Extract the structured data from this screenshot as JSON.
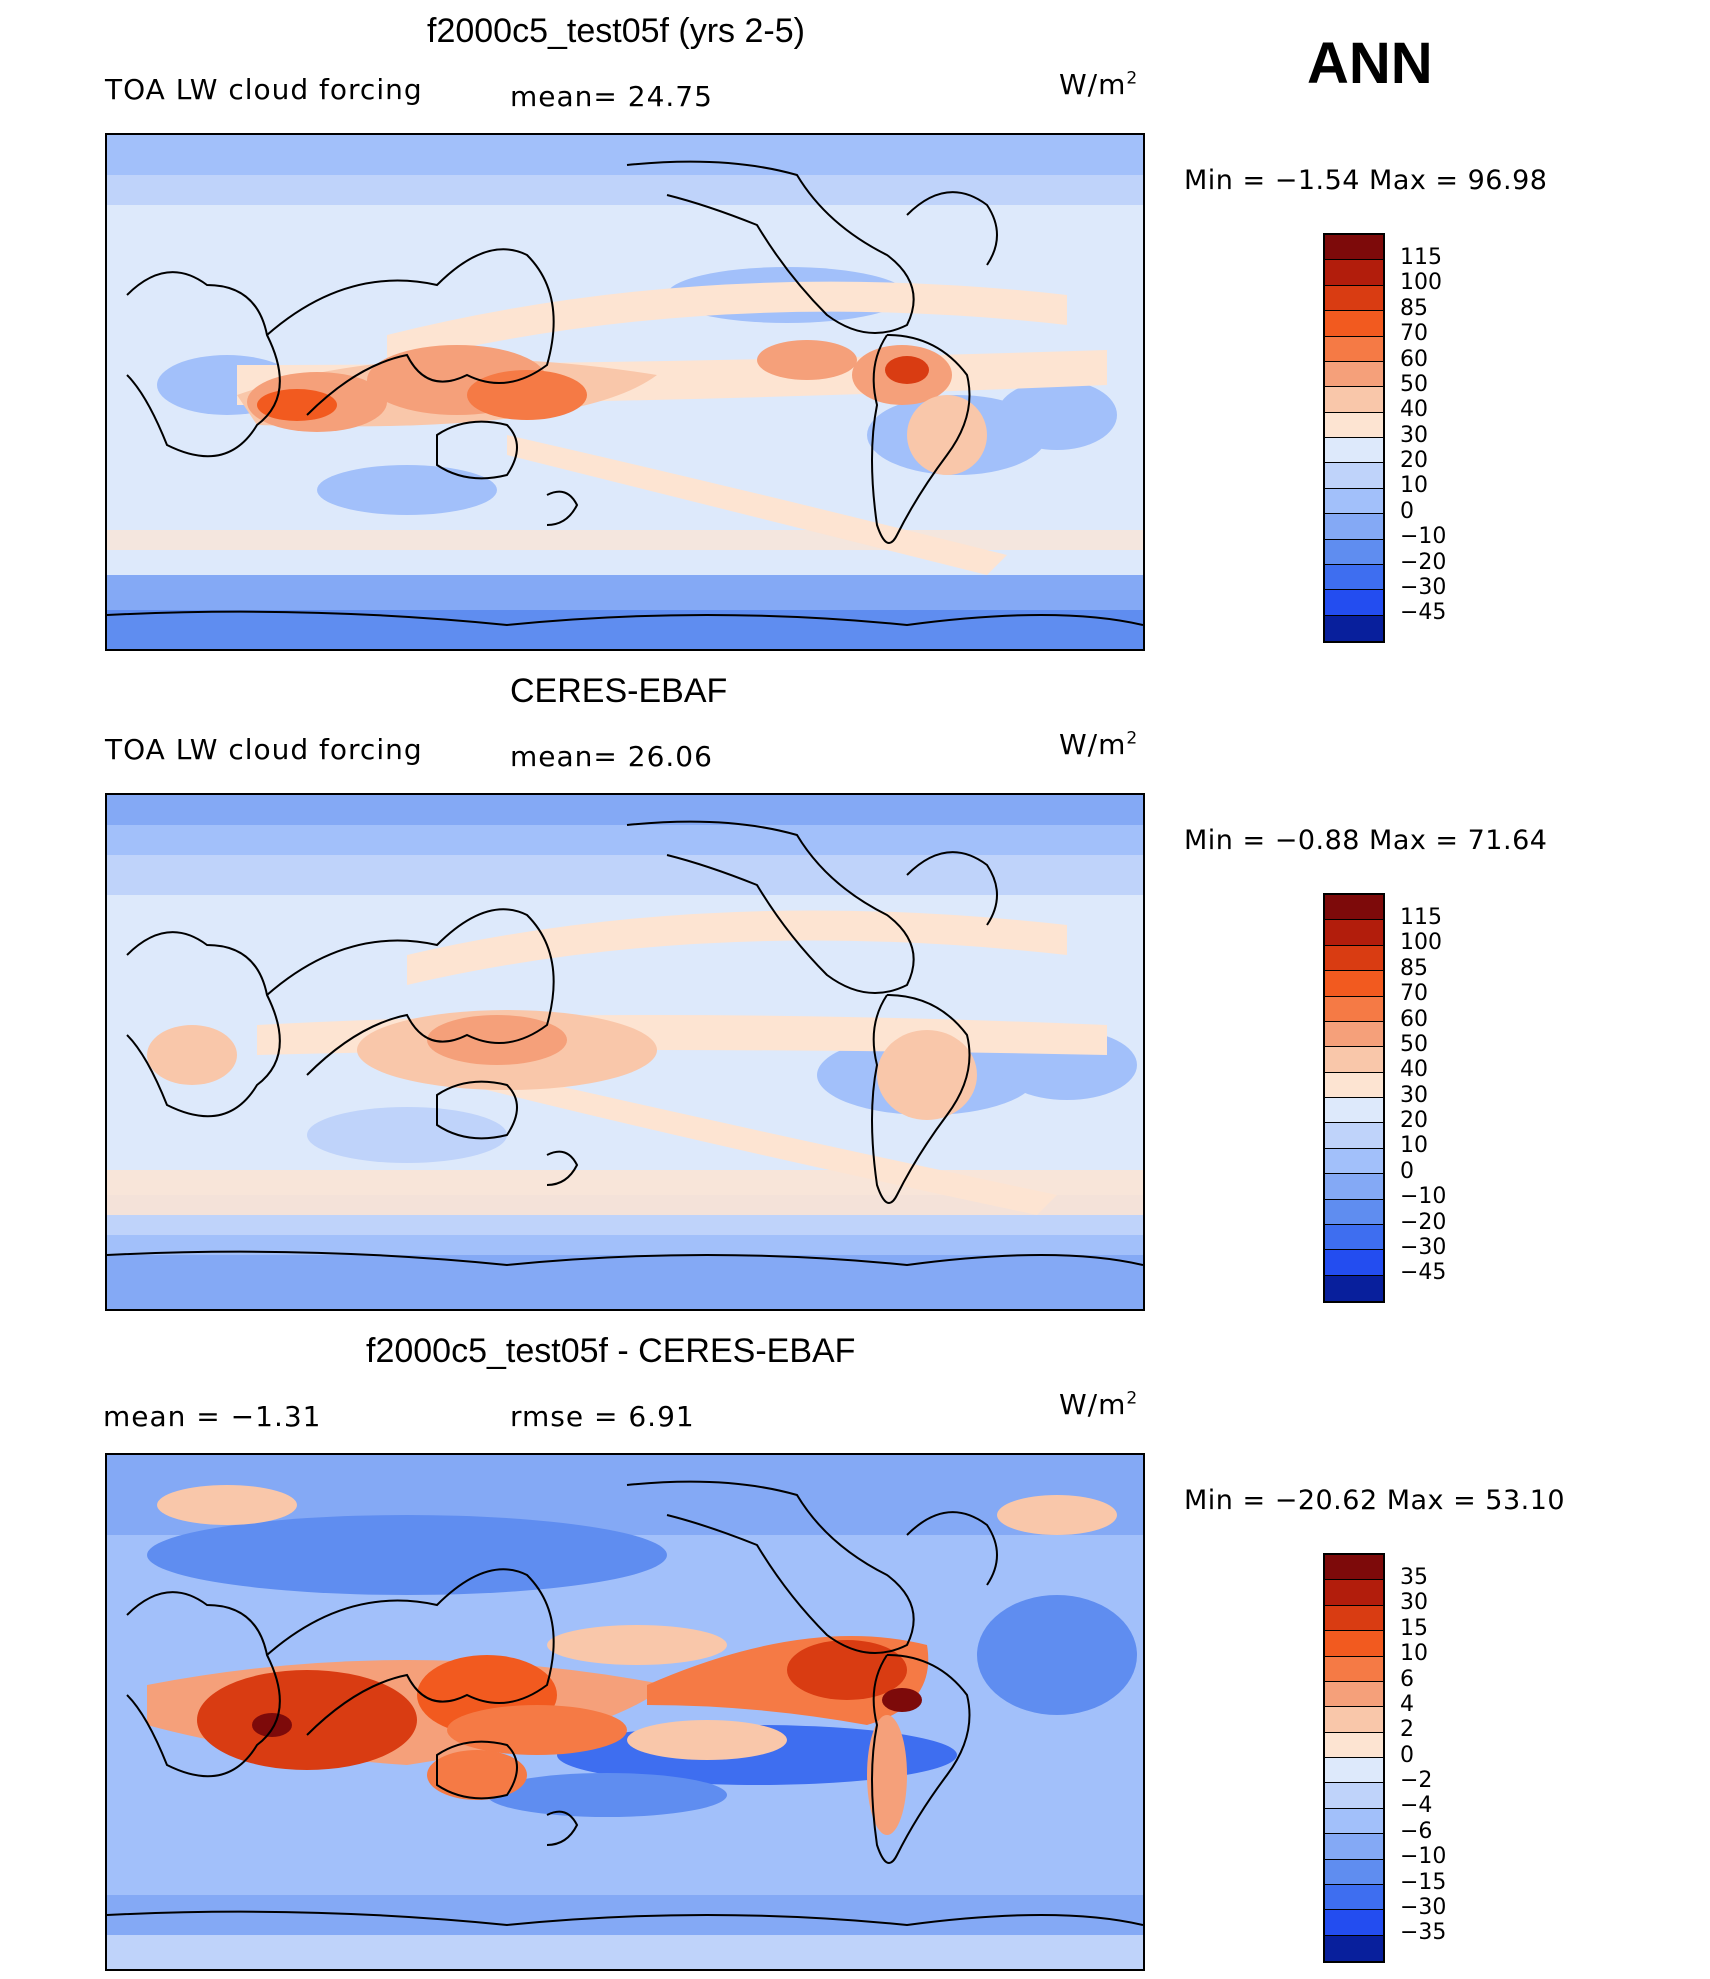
{
  "season": "ANN",
  "palette_warm_cool": [
    "#7d0a0a",
    "#b21d0c",
    "#d93c12",
    "#f25a1f",
    "#f57a45",
    "#f5a07a",
    "#f9c7aa",
    "#fde4d2",
    "#dde9fb",
    "#bfd3fa",
    "#a2c0fa",
    "#84a9f5",
    "#5f8df0",
    "#3e6ef0",
    "#234df0",
    "#1233c8",
    "#081f9c",
    "#000c75"
  ],
  "panels": [
    {
      "title": "f2000c5_test05f (yrs 2-5)",
      "left_text": "TOA LW cloud forcing",
      "mid_text": "mean=  24.75",
      "units_main": "W/m",
      "units_exp": "2",
      "minmax": "Min =   −1.54  Max =   96.98",
      "colorbar": {
        "labels": [
          "115",
          "100",
          "85",
          "70",
          "60",
          "50",
          "40",
          "30",
          "20",
          "10",
          "0",
          "−10",
          "−20",
          "−30",
          "−45"
        ],
        "colors": [
          "#7d0a0a",
          "#b21d0c",
          "#d93c12",
          "#f25a1f",
          "#f57a45",
          "#f5a07a",
          "#f9c7aa",
          "#fde4d2",
          "#dde9fb",
          "#bfd3fa",
          "#a2c0fa",
          "#84a9f5",
          "#5f8df0",
          "#3e6ef0",
          "#234df0",
          "#081f9c"
        ]
      }
    },
    {
      "title": "CERES-EBAF",
      "left_text": "TOA LW cloud forcing",
      "mid_text": "mean=  26.06",
      "units_main": "W/m",
      "units_exp": "2",
      "minmax": "Min =   −0.88  Max =   71.64",
      "colorbar": {
        "labels": [
          "115",
          "100",
          "85",
          "70",
          "60",
          "50",
          "40",
          "30",
          "20",
          "10",
          "0",
          "−10",
          "−20",
          "−30",
          "−45"
        ],
        "colors": [
          "#7d0a0a",
          "#b21d0c",
          "#d93c12",
          "#f25a1f",
          "#f57a45",
          "#f5a07a",
          "#f9c7aa",
          "#fde4d2",
          "#dde9fb",
          "#bfd3fa",
          "#a2c0fa",
          "#84a9f5",
          "#5f8df0",
          "#3e6ef0",
          "#234df0",
          "#081f9c"
        ]
      }
    },
    {
      "title": "f2000c5_test05f - CERES-EBAF",
      "left_text": "mean =   −1.31",
      "mid_text": "rmse =    6.91",
      "units_main": "W/m",
      "units_exp": "2",
      "minmax": "Min = −20.62  Max =   53.10",
      "colorbar": {
        "labels": [
          "35",
          "30",
          "15",
          "10",
          "6",
          "4",
          "2",
          "0",
          "−2",
          "−4",
          "−6",
          "−10",
          "−15",
          "−30",
          "−35"
        ],
        "colors": [
          "#7d0a0a",
          "#b21d0c",
          "#d93c12",
          "#f25a1f",
          "#f57a45",
          "#f5a07a",
          "#f9c7aa",
          "#fde4d2",
          "#dde9fb",
          "#bfd3fa",
          "#a2c0fa",
          "#84a9f5",
          "#5f8df0",
          "#3e6ef0",
          "#234df0",
          "#081f9c"
        ]
      }
    }
  ]
}
